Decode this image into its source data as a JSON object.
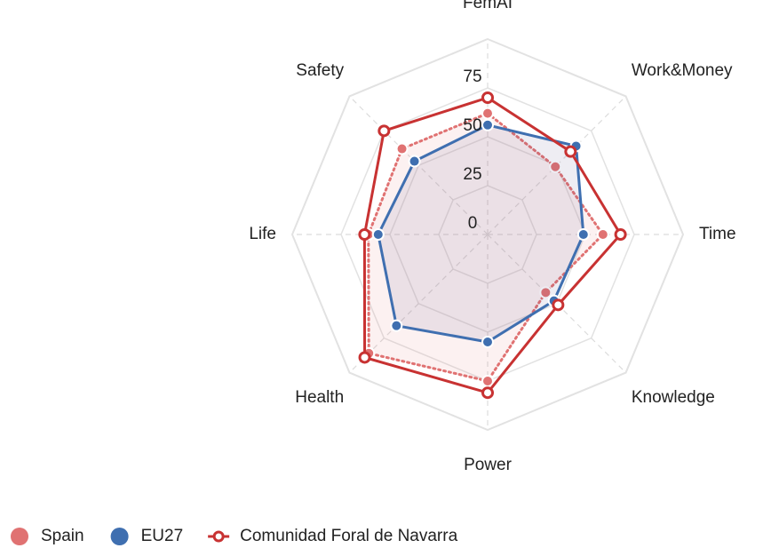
{
  "chart_data": {
    "type": "radar",
    "categories": [
      "FemAI",
      "Work&Money",
      "Time",
      "Knowledge",
      "Power",
      "Health",
      "Life",
      "Safety"
    ],
    "ylim": [
      0,
      100
    ],
    "yticks": [
      0,
      25,
      50,
      75
    ],
    "grid": true,
    "legend": "bottom-left",
    "series": [
      {
        "name": "Spain",
        "color": "#e07272",
        "style": "dotted",
        "values": [
          62,
          49,
          59,
          42,
          75,
          86,
          61,
          62
        ]
      },
      {
        "name": "EU27",
        "color": "#3f6fb0",
        "style": "solid",
        "values": [
          56,
          64,
          49,
          48,
          55,
          66,
          56,
          53
        ]
      },
      {
        "name": "Comunidad Foral de Navarra",
        "color": "#c83232",
        "style": "solid-open",
        "values": [
          70,
          60,
          68,
          51,
          81,
          89,
          63,
          75
        ]
      }
    ]
  }
}
